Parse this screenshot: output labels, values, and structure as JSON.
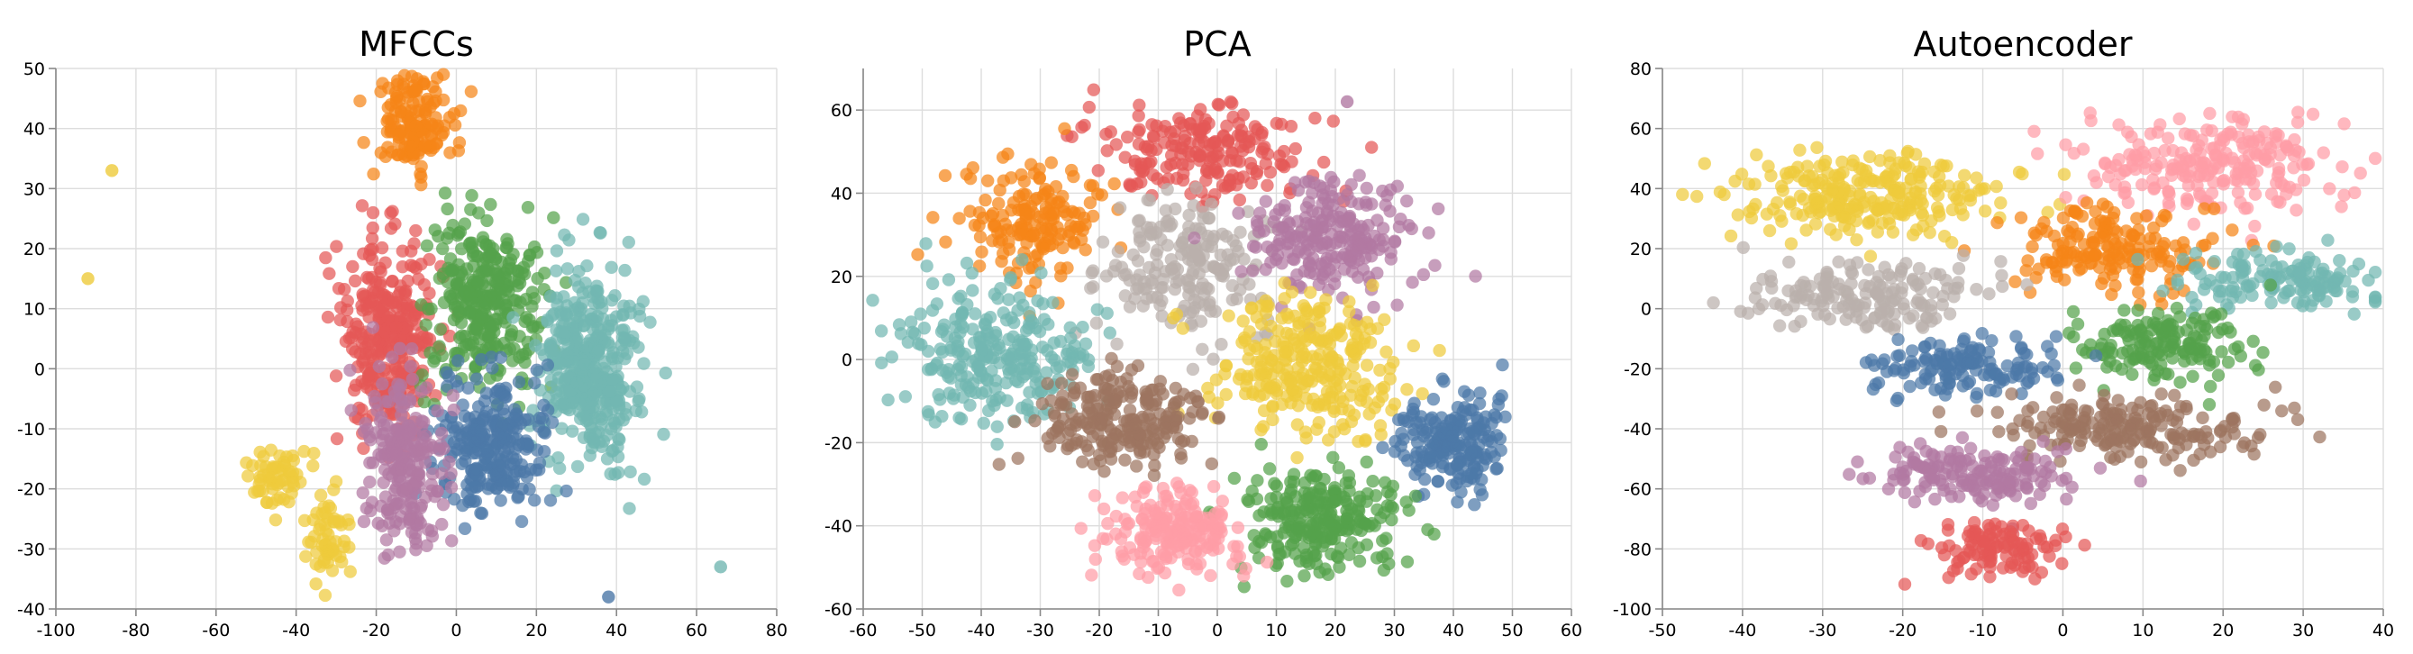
{
  "chart_data": [
    {
      "type": "scatter",
      "title": "MFCCs",
      "xlim": [
        -100,
        80
      ],
      "ylim": [
        -40,
        50
      ],
      "xticks": [
        -100,
        -80,
        -60,
        -40,
        -20,
        0,
        20,
        40,
        60,
        80
      ],
      "yticks": [
        -40,
        -30,
        -20,
        -10,
        0,
        10,
        20,
        30,
        40,
        50
      ],
      "grid": true,
      "clusters": [
        {
          "color": "#f58518",
          "cx": -11,
          "cy": 41,
          "sx": 5,
          "sy": 4,
          "n": 150
        },
        {
          "color": "#e45756",
          "cx": -17,
          "cy": 5,
          "sx": 6,
          "sy": 8,
          "n": 320
        },
        {
          "color": "#54a24b",
          "cx": 7,
          "cy": 11,
          "sx": 7,
          "sy": 7,
          "n": 320
        },
        {
          "color": "#72b7b2",
          "cx": 33,
          "cy": 0,
          "sx": 6,
          "sy": 8,
          "n": 420
        },
        {
          "color": "#4c78a8",
          "cx": 9,
          "cy": -13,
          "sx": 7,
          "sy": 6,
          "n": 260
        },
        {
          "color": "#b279a2",
          "cx": -13,
          "cy": -16,
          "sx": 5,
          "sy": 7,
          "n": 230
        },
        {
          "color": "#eeca3b",
          "cx": -45,
          "cy": -18,
          "sx": 4,
          "sy": 2.5,
          "n": 60
        },
        {
          "color": "#eeca3b",
          "cx": -32,
          "cy": -28,
          "sx": 3,
          "sy": 4,
          "n": 60
        }
      ],
      "outliers": [
        {
          "x": -86,
          "y": 33,
          "color": "#eeca3b"
        },
        {
          "x": -92,
          "y": 15,
          "color": "#eeca3b"
        },
        {
          "x": 66,
          "y": -33,
          "color": "#72b7b2"
        },
        {
          "x": 38,
          "y": -38,
          "color": "#4c78a8"
        }
      ]
    },
    {
      "type": "scatter",
      "title": "PCA",
      "xlim": [
        -60,
        60
      ],
      "ylim": [
        -60,
        70
      ],
      "xticks": [
        -60,
        -50,
        -40,
        -30,
        -20,
        -10,
        0,
        10,
        20,
        30,
        40,
        50,
        60
      ],
      "yticks": [
        -60,
        -40,
        -20,
        0,
        20,
        40,
        60
      ],
      "grid": true,
      "clusters": [
        {
          "color": "#e45756",
          "cx": -2,
          "cy": 50,
          "sx": 9,
          "sy": 6,
          "n": 200
        },
        {
          "color": "#f58518",
          "cx": -30,
          "cy": 32,
          "sx": 6,
          "sy": 7,
          "n": 170
        },
        {
          "color": "#bab0ac",
          "cx": -5,
          "cy": 22,
          "sx": 7,
          "sy": 8,
          "n": 200
        },
        {
          "color": "#b279a2",
          "cx": 20,
          "cy": 29,
          "sx": 7,
          "sy": 7,
          "n": 230
        },
        {
          "color": "#72b7b2",
          "cx": -37,
          "cy": 2,
          "sx": 8,
          "sy": 8,
          "n": 260
        },
        {
          "color": "#eeca3b",
          "cx": 15,
          "cy": -2,
          "sx": 8,
          "sy": 8,
          "n": 280
        },
        {
          "color": "#9c755f",
          "cx": -16,
          "cy": -15,
          "sx": 7,
          "sy": 6,
          "n": 230
        },
        {
          "color": "#4c78a8",
          "cx": 40,
          "cy": -20,
          "sx": 5,
          "sy": 6,
          "n": 200
        },
        {
          "color": "#54a24b",
          "cx": 18,
          "cy": -38,
          "sx": 7,
          "sy": 6,
          "n": 250
        },
        {
          "color": "#ff9da6",
          "cx": -8,
          "cy": -42,
          "sx": 6,
          "sy": 5,
          "n": 200
        }
      ],
      "outliers": [
        {
          "x": 22,
          "y": 62,
          "color": "#b279a2"
        }
      ]
    },
    {
      "type": "scatter",
      "title": "Autoencoder",
      "xlim": [
        -50,
        40
      ],
      "ylim": [
        -100,
        80
      ],
      "xticks": [
        -50,
        -40,
        -30,
        -20,
        -10,
        0,
        10,
        20,
        30,
        40
      ],
      "yticks": [
        -100,
        -80,
        -60,
        -40,
        -20,
        0,
        20,
        40,
        60,
        80
      ],
      "grid": true,
      "clusters": [
        {
          "color": "#eeca3b",
          "cx": -24,
          "cy": 38,
          "sx": 8,
          "sy": 7,
          "n": 260
        },
        {
          "color": "#ff9da6",
          "cx": 18,
          "cy": 48,
          "sx": 8,
          "sy": 8,
          "n": 230
        },
        {
          "color": "#f58518",
          "cx": 6,
          "cy": 20,
          "sx": 6,
          "sy": 7,
          "n": 180
        },
        {
          "color": "#bab0ac",
          "cx": -24,
          "cy": 4,
          "sx": 7,
          "sy": 6,
          "n": 170
        },
        {
          "color": "#72b7b2",
          "cx": 27,
          "cy": 10,
          "sx": 6,
          "sy": 5,
          "n": 140
        },
        {
          "color": "#54a24b",
          "cx": 13,
          "cy": -12,
          "sx": 5,
          "sy": 6,
          "n": 160
        },
        {
          "color": "#4c78a8",
          "cx": -12,
          "cy": -20,
          "sx": 6,
          "sy": 5,
          "n": 140
        },
        {
          "color": "#9c755f",
          "cx": 8,
          "cy": -40,
          "sx": 8,
          "sy": 5,
          "n": 200
        },
        {
          "color": "#b279a2",
          "cx": -10,
          "cy": -55,
          "sx": 7,
          "sy": 5,
          "n": 160
        },
        {
          "color": "#e45756",
          "cx": -8,
          "cy": -80,
          "sx": 4,
          "sy": 5,
          "n": 110
        }
      ],
      "outliers": []
    }
  ]
}
